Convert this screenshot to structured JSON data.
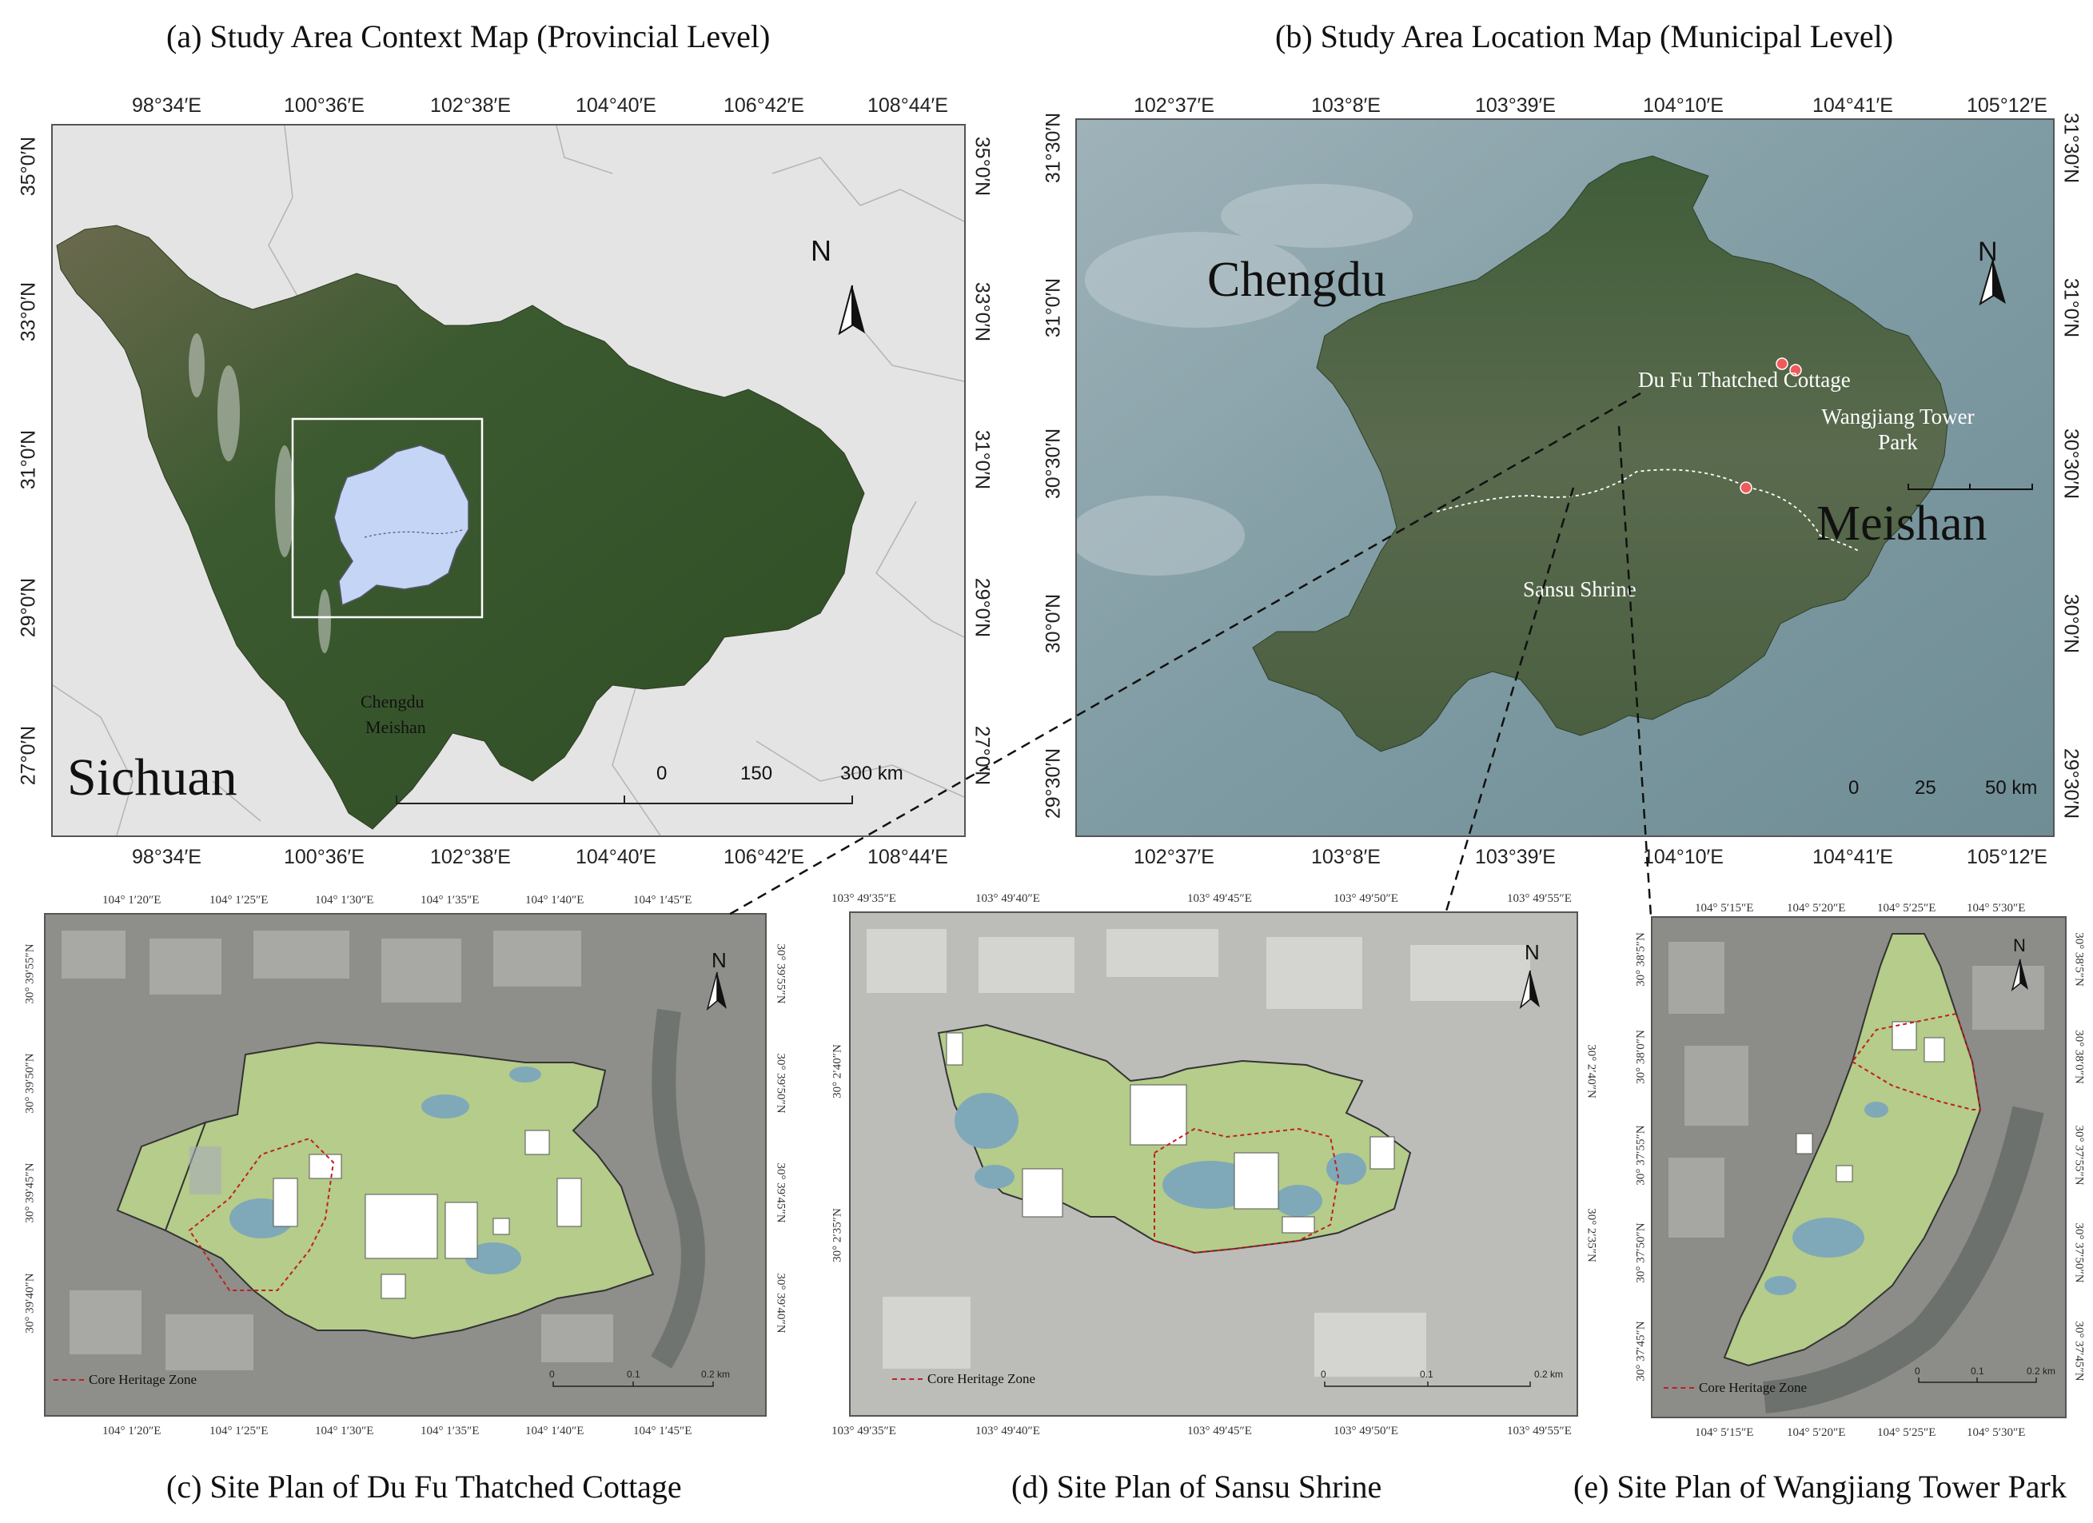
{
  "panels": {
    "a": {
      "title": "(a) Study Area Context Map (Provincial Level)",
      "lon_ticks": [
        "98°34′E",
        "100°36′E",
        "102°38′E",
        "104°40′E",
        "106°42′E",
        "108°44′E"
      ],
      "lat_ticks": [
        "35°0′N",
        "33°0′N",
        "31°0′N",
        "29°0′N",
        "27°0′N"
      ],
      "region_label": "Sichuan",
      "city_labels": [
        "Chengdu",
        "Meishan"
      ],
      "north": "N",
      "scale": [
        "0",
        "150",
        "300 km"
      ]
    },
    "b": {
      "title": "(b) Study Area Location Map (Municipal Level)",
      "lon_ticks": [
        "102°37′E",
        "103°8′E",
        "103°39′E",
        "104°10′E",
        "104°41′E",
        "105°12′E"
      ],
      "lat_ticks": [
        "31°30′N",
        "31°0′N",
        "30°30′N",
        "30°0′N",
        "29°30′N"
      ],
      "city_labels": [
        "Chengdu",
        "Meishan"
      ],
      "sites": [
        "Du Fu Thatched Cottage",
        "Wangjiang Tower Park",
        "Sansu Shrine"
      ],
      "north": "N",
      "scale": [
        "0",
        "25",
        "50 km"
      ]
    },
    "c": {
      "title": "(c) Site Plan of Du Fu Thatched Cottage",
      "lon_ticks": [
        "104° 1′20″E",
        "104° 1′25″E",
        "104° 1′30″E",
        "104° 1′35″E",
        "104° 1′40″E",
        "104° 1′45″E"
      ],
      "lat_ticks": [
        "30° 39′55″N",
        "30° 39′50″N",
        "30° 39′45″N",
        "30° 39′40″N"
      ],
      "north": "N",
      "scale": [
        "0",
        "0.1",
        "0.2 km"
      ],
      "legend": "Core Heritage Zone"
    },
    "d": {
      "title": "(d) Site Plan of Sansu Shrine",
      "lon_ticks": [
        "103° 49′35″E",
        "103° 49′40″E",
        "103° 49′45″E",
        "103° 49′50″E",
        "103° 49′55″E"
      ],
      "lat_ticks": [
        "30° 2′40″N",
        "30° 2′35″N"
      ],
      "north": "N",
      "scale": [
        "0",
        "0.1",
        "0.2 km"
      ],
      "legend": "Core Heritage Zone"
    },
    "e": {
      "title": "(e) Site Plan of Wangjiang Tower Park",
      "lon_ticks": [
        "104° 5′15″E",
        "104° 5′20″E",
        "104° 5′25″E",
        "104° 5′30″E"
      ],
      "lat_ticks": [
        "30° 38′5″N",
        "30° 38′0″N",
        "30° 37′55″N",
        "30° 37′50″N",
        "30° 37′45″N"
      ],
      "north": "N",
      "scale": [
        "0",
        "0.1",
        "0.2 km"
      ],
      "legend": "Core Heritage Zone"
    }
  },
  "colors": {
    "province_green": "#3d5a2e",
    "study_area_fill": "#c5d5f5",
    "site_fill": "#b5cc8a",
    "core_zone_line": "#c02020",
    "site_marker": "#f05a5a",
    "satellite_blue": "#7c9aa6"
  }
}
